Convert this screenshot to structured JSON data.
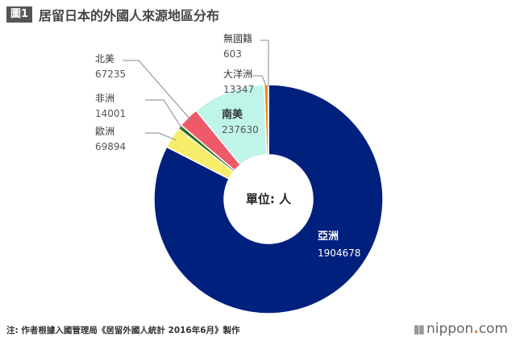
{
  "header": {
    "badge": "圖1",
    "title": "居留日本的外國人來源地區分布"
  },
  "chart_data": {
    "type": "pie",
    "center_label": "單位: 人",
    "categories": [
      "亞洲",
      "歐洲",
      "非洲",
      "北美",
      "南美",
      "大洋洲",
      "無國籍"
    ],
    "values": [
      1904678,
      69894,
      14001,
      67235,
      237630,
      13347,
      603
    ],
    "colors": [
      "#00207e",
      "#f6ee6a",
      "#2f6e1f",
      "#ee5a6a",
      "#bff5e9",
      "#f28b1e",
      "#9bbfd9"
    ],
    "legend": "labels-outside"
  },
  "footer": {
    "source": "注: 作者根據入國管理局《居留外國人統計 2016年6月》製作"
  },
  "brand": {
    "name_left": "nippon",
    "dot": ".",
    "name_right": "com"
  }
}
